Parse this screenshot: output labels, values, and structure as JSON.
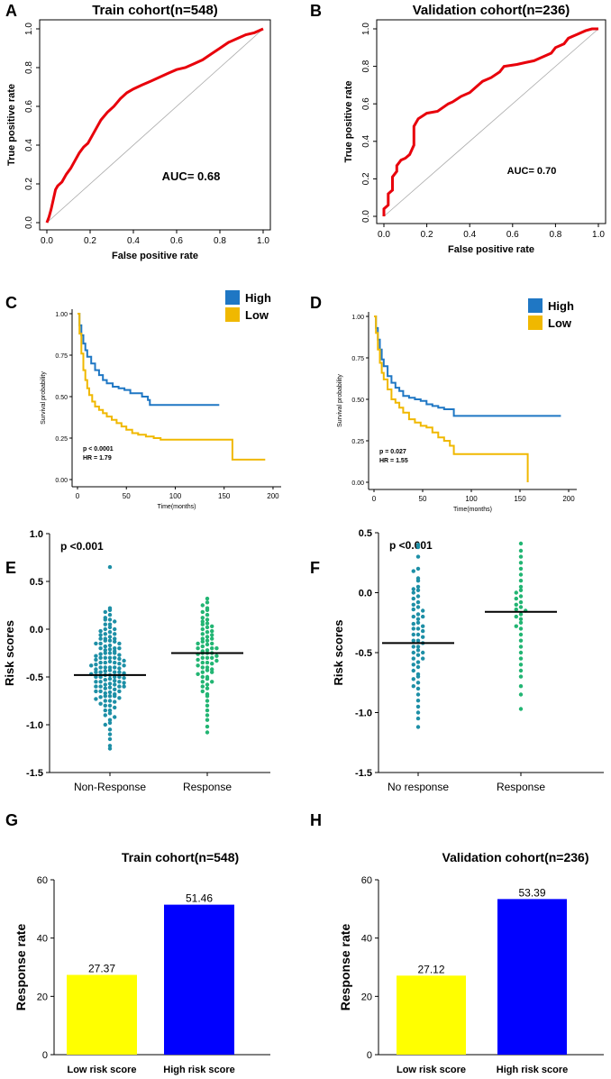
{
  "figure": {
    "panel_letters": [
      "A",
      "B",
      "C",
      "D",
      "E",
      "F",
      "G",
      "H"
    ]
  },
  "chart_data": [
    {
      "panel": "A",
      "type": "line",
      "title": "Train cohort(n=548)",
      "xlabel": "False positive rate",
      "ylabel": "True positive rate",
      "xticks": [
        "0.0",
        "0.2",
        "0.4",
        "0.6",
        "0.8",
        "1.0"
      ],
      "yticks": [
        "0.0",
        "0.2",
        "0.4",
        "0.6",
        "0.8",
        "1.0"
      ],
      "xlim": [
        0,
        1
      ],
      "ylim": [
        0,
        1
      ],
      "annotation": "AUC= 0.68",
      "series": [
        {
          "name": "ROC",
          "color": "#e8000b",
          "x": [
            0,
            0.01,
            0.02,
            0.03,
            0.04,
            0.05,
            0.07,
            0.09,
            0.11,
            0.13,
            0.15,
            0.17,
            0.19,
            0.21,
            0.23,
            0.25,
            0.28,
            0.31,
            0.34,
            0.37,
            0.4,
            0.44,
            0.48,
            0.52,
            0.56,
            0.6,
            0.64,
            0.68,
            0.72,
            0.76,
            0.8,
            0.84,
            0.88,
            0.92,
            0.96,
            1.0
          ],
          "y": [
            0,
            0.03,
            0.07,
            0.12,
            0.17,
            0.19,
            0.21,
            0.25,
            0.28,
            0.32,
            0.36,
            0.39,
            0.41,
            0.45,
            0.49,
            0.53,
            0.57,
            0.6,
            0.64,
            0.67,
            0.69,
            0.71,
            0.73,
            0.75,
            0.77,
            0.79,
            0.8,
            0.82,
            0.84,
            0.87,
            0.9,
            0.93,
            0.95,
            0.97,
            0.98,
            1.0
          ]
        },
        {
          "name": "reference",
          "color": "#aaaaaa",
          "x": [
            0,
            1
          ],
          "y": [
            0,
            1
          ]
        }
      ]
    },
    {
      "panel": "B",
      "type": "line",
      "title": "Validation cohort(n=236)",
      "xlabel": "False positive rate",
      "ylabel": "True positive rate",
      "xticks": [
        "0.0",
        "0.2",
        "0.4",
        "0.6",
        "0.8",
        "1.0"
      ],
      "yticks": [
        "0.0",
        "0.2",
        "0.4",
        "0.6",
        "0.8",
        "1.0"
      ],
      "xlim": [
        0,
        1
      ],
      "ylim": [
        0,
        1
      ],
      "annotation": "AUC= 0.70",
      "series": [
        {
          "name": "ROC",
          "color": "#e8000b",
          "x": [
            0,
            0.0,
            0.02,
            0.02,
            0.04,
            0.04,
            0.06,
            0.06,
            0.08,
            0.1,
            0.12,
            0.14,
            0.14,
            0.16,
            0.2,
            0.25,
            0.3,
            0.32,
            0.36,
            0.4,
            0.44,
            0.46,
            0.5,
            0.54,
            0.56,
            0.62,
            0.66,
            0.7,
            0.72,
            0.78,
            0.8,
            0.84,
            0.86,
            0.9,
            0.94,
            0.97,
            1.0
          ],
          "y": [
            0,
            0.04,
            0.06,
            0.12,
            0.14,
            0.21,
            0.24,
            0.27,
            0.3,
            0.31,
            0.33,
            0.38,
            0.48,
            0.52,
            0.55,
            0.56,
            0.6,
            0.61,
            0.64,
            0.66,
            0.7,
            0.72,
            0.74,
            0.77,
            0.8,
            0.81,
            0.82,
            0.83,
            0.84,
            0.87,
            0.9,
            0.92,
            0.95,
            0.97,
            0.99,
            1.0,
            1.0
          ]
        },
        {
          "name": "reference",
          "color": "#aaaaaa",
          "x": [
            0,
            1
          ],
          "y": [
            0,
            1
          ]
        }
      ]
    },
    {
      "panel": "C",
      "type": "line",
      "title": "",
      "xlabel": "Time(months)",
      "ylabel": "Survival probability",
      "xticks": [
        "0",
        "50",
        "100",
        "150",
        "200"
      ],
      "yticks": [
        "0.00",
        "0.25",
        "0.50",
        "0.75",
        "1.00"
      ],
      "xlim": [
        0,
        200
      ],
      "ylim": [
        0,
        1
      ],
      "annotation": [
        "p < 0.0001",
        "HR = 1.79"
      ],
      "legend": [
        "High",
        "Low"
      ],
      "series": [
        {
          "name": "High",
          "color": "#1f77c4",
          "x": [
            0,
            2,
            4,
            6,
            8,
            10,
            14,
            18,
            22,
            26,
            30,
            36,
            42,
            48,
            54,
            60,
            66,
            72,
            74,
            80,
            90,
            100,
            110,
            120,
            130,
            145
          ],
          "y": [
            1.0,
            0.93,
            0.87,
            0.82,
            0.78,
            0.74,
            0.7,
            0.66,
            0.63,
            0.6,
            0.58,
            0.56,
            0.55,
            0.54,
            0.52,
            0.52,
            0.5,
            0.48,
            0.45,
            0.45,
            0.45,
            0.45,
            0.45,
            0.45,
            0.45,
            0.45
          ]
        },
        {
          "name": "Low",
          "color": "#f0b800",
          "x": [
            0,
            2,
            4,
            6,
            8,
            10,
            12,
            15,
            18,
            22,
            26,
            30,
            35,
            40,
            45,
            50,
            56,
            62,
            70,
            78,
            85,
            100,
            120,
            150,
            158,
            158.5,
            170,
            180,
            192
          ],
          "y": [
            1.0,
            0.88,
            0.76,
            0.66,
            0.6,
            0.55,
            0.51,
            0.47,
            0.44,
            0.42,
            0.4,
            0.38,
            0.36,
            0.34,
            0.32,
            0.3,
            0.28,
            0.27,
            0.26,
            0.25,
            0.24,
            0.24,
            0.24,
            0.24,
            0.24,
            0.12,
            0.12,
            0.12,
            0.12
          ]
        }
      ]
    },
    {
      "panel": "D",
      "type": "line",
      "title": "",
      "xlabel": "Time(months)",
      "ylabel": "Survival probability",
      "xticks": [
        "0",
        "50",
        "100",
        "150",
        "200"
      ],
      "yticks": [
        "0.00",
        "0.25",
        "0.50",
        "0.75",
        "1.00"
      ],
      "xlim": [
        0,
        200
      ],
      "ylim": [
        0,
        1
      ],
      "annotation": [
        "p = 0.027",
        "HR = 1.55"
      ],
      "legend": [
        "High",
        "Low"
      ],
      "series": [
        {
          "name": "High",
          "color": "#1f77c4",
          "x": [
            0,
            2,
            4,
            6,
            8,
            10,
            14,
            18,
            22,
            26,
            30,
            36,
            42,
            48,
            54,
            60,
            66,
            72,
            78,
            80,
            82,
            100,
            120,
            140,
            160,
            180,
            192
          ],
          "y": [
            1.0,
            0.93,
            0.86,
            0.8,
            0.74,
            0.7,
            0.64,
            0.6,
            0.57,
            0.55,
            0.52,
            0.51,
            0.5,
            0.49,
            0.47,
            0.46,
            0.45,
            0.44,
            0.44,
            0.44,
            0.4,
            0.4,
            0.4,
            0.4,
            0.4,
            0.4,
            0.4
          ]
        },
        {
          "name": "Low",
          "color": "#f0b800",
          "x": [
            0,
            2,
            4,
            6,
            8,
            10,
            14,
            18,
            22,
            26,
            30,
            36,
            42,
            48,
            54,
            60,
            66,
            72,
            78,
            82,
            90,
            110,
            130,
            150,
            158,
            158
          ],
          "y": [
            1.0,
            0.9,
            0.8,
            0.72,
            0.66,
            0.62,
            0.56,
            0.5,
            0.48,
            0.45,
            0.42,
            0.38,
            0.36,
            0.34,
            0.33,
            0.3,
            0.27,
            0.25,
            0.22,
            0.17,
            0.17,
            0.17,
            0.17,
            0.17,
            0.17,
            0.0
          ]
        }
      ]
    },
    {
      "panel": "E",
      "type": "scatter",
      "title": "",
      "annotation": "p <0.001",
      "ylabel": "Risk scores",
      "categories": [
        "Non-Response",
        "Response"
      ],
      "yticks": [
        "-1.5",
        "-1.0",
        "-0.5",
        "0.0",
        "0.5",
        "1.0"
      ],
      "ylim": [
        -1.5,
        1.0
      ],
      "means": [
        -0.48,
        -0.25
      ],
      "colors": [
        "#1d8fa6",
        "#22b573"
      ],
      "series": [
        {
          "name": "Non-Response",
          "values": [
            0.65,
            0.22,
            0.2,
            0.18,
            0.15,
            0.12,
            0.1,
            0.1,
            0.08,
            0.05,
            0.05,
            0.02,
            0.0,
            0.0,
            -0.02,
            -0.03,
            -0.05,
            -0.05,
            -0.06,
            -0.08,
            -0.1,
            -0.1,
            -0.1,
            -0.12,
            -0.12,
            -0.13,
            -0.15,
            -0.15,
            -0.15,
            -0.17,
            -0.18,
            -0.2,
            -0.2,
            -0.2,
            -0.21,
            -0.22,
            -0.23,
            -0.25,
            -0.25,
            -0.25,
            -0.26,
            -0.27,
            -0.28,
            -0.3,
            -0.3,
            -0.3,
            -0.3,
            -0.31,
            -0.32,
            -0.33,
            -0.34,
            -0.35,
            -0.35,
            -0.35,
            -0.36,
            -0.37,
            -0.38,
            -0.38,
            -0.4,
            -0.4,
            -0.4,
            -0.4,
            -0.41,
            -0.42,
            -0.43,
            -0.44,
            -0.45,
            -0.45,
            -0.45,
            -0.45,
            -0.46,
            -0.47,
            -0.48,
            -0.48,
            -0.5,
            -0.5,
            -0.5,
            -0.5,
            -0.51,
            -0.52,
            -0.53,
            -0.54,
            -0.55,
            -0.55,
            -0.55,
            -0.56,
            -0.57,
            -0.58,
            -0.58,
            -0.6,
            -0.6,
            -0.6,
            -0.6,
            -0.61,
            -0.62,
            -0.63,
            -0.65,
            -0.65,
            -0.65,
            -0.66,
            -0.67,
            -0.68,
            -0.7,
            -0.7,
            -0.7,
            -0.71,
            -0.72,
            -0.73,
            -0.75,
            -0.75,
            -0.76,
            -0.78,
            -0.8,
            -0.8,
            -0.82,
            -0.85,
            -0.85,
            -0.88,
            -0.9,
            -0.92,
            -0.95,
            -0.98,
            -1.0,
            -1.05,
            -1.1,
            -1.15,
            -1.22,
            -1.25
          ]
        },
        {
          "name": "Response",
          "values": [
            0.32,
            0.28,
            0.25,
            0.22,
            0.2,
            0.18,
            0.15,
            0.12,
            0.1,
            0.08,
            0.06,
            0.05,
            0.03,
            0.02,
            0.0,
            -0.02,
            -0.03,
            -0.05,
            -0.06,
            -0.08,
            -0.1,
            -0.1,
            -0.12,
            -0.13,
            -0.15,
            -0.15,
            -0.16,
            -0.18,
            -0.2,
            -0.2,
            -0.2,
            -0.22,
            -0.23,
            -0.25,
            -0.25,
            -0.25,
            -0.26,
            -0.28,
            -0.3,
            -0.3,
            -0.3,
            -0.32,
            -0.33,
            -0.35,
            -0.35,
            -0.36,
            -0.38,
            -0.4,
            -0.4,
            -0.42,
            -0.43,
            -0.45,
            -0.45,
            -0.47,
            -0.5,
            -0.5,
            -0.52,
            -0.55,
            -0.55,
            -0.58,
            -0.6,
            -0.62,
            -0.65,
            -0.68,
            -0.7,
            -0.75,
            -0.8,
            -0.85,
            -0.9,
            -0.95,
            -1.02,
            -1.08
          ]
        }
      ]
    },
    {
      "panel": "F",
      "type": "scatter",
      "title": "",
      "annotation": "p <0.001",
      "ylabel": "Risk scores",
      "categories": [
        "No response",
        "Response"
      ],
      "yticks": [
        "-1.5",
        "-1.0",
        "-0.5",
        "0.0",
        "0.5"
      ],
      "ylim": [
        -1.5,
        0.5
      ],
      "means": [
        -0.42,
        -0.16
      ],
      "colors": [
        "#1d8fa6",
        "#22b573"
      ],
      "series": [
        {
          "name": "No response",
          "values": [
            0.4,
            0.38,
            0.3,
            0.2,
            0.18,
            0.12,
            0.1,
            0.05,
            0.03,
            0.02,
            0.0,
            -0.03,
            -0.05,
            -0.08,
            -0.1,
            -0.12,
            -0.14,
            -0.15,
            -0.18,
            -0.2,
            -0.2,
            -0.22,
            -0.25,
            -0.26,
            -0.28,
            -0.3,
            -0.3,
            -0.32,
            -0.35,
            -0.35,
            -0.37,
            -0.4,
            -0.4,
            -0.42,
            -0.45,
            -0.45,
            -0.48,
            -0.5,
            -0.5,
            -0.52,
            -0.55,
            -0.55,
            -0.58,
            -0.6,
            -0.62,
            -0.65,
            -0.68,
            -0.7,
            -0.72,
            -0.75,
            -0.78,
            -0.8,
            -0.85,
            -0.9,
            -0.95,
            -1.0,
            -1.05,
            -1.12
          ]
        },
        {
          "name": "Response",
          "values": [
            0.41,
            0.35,
            0.3,
            0.25,
            0.2,
            0.15,
            0.1,
            0.05,
            0.02,
            0.0,
            -0.03,
            -0.05,
            -0.08,
            -0.1,
            -0.12,
            -0.14,
            -0.15,
            -0.18,
            -0.2,
            -0.22,
            -0.25,
            -0.28,
            -0.3,
            -0.35,
            -0.4,
            -0.45,
            -0.5,
            -0.55,
            -0.6,
            -0.65,
            -0.7,
            -0.78,
            -0.85,
            -0.97
          ]
        }
      ]
    },
    {
      "panel": "G",
      "type": "bar",
      "title": "Train cohort(n=548)",
      "xlabel": "",
      "ylabel": "Response rate",
      "categories": [
        "Low risk score",
        "High risk score"
      ],
      "values": [
        27.37,
        51.46
      ],
      "labels": [
        "27.37",
        "51.46"
      ],
      "colors": [
        "#ffff00",
        "#0000ff"
      ],
      "yticks": [
        "0",
        "20",
        "40",
        "60"
      ],
      "ylim": [
        0,
        60
      ]
    },
    {
      "panel": "H",
      "type": "bar",
      "title": "Validation cohort(n=236)",
      "xlabel": "",
      "ylabel": "Response rate",
      "categories": [
        "Low risk score",
        "High risk score"
      ],
      "values": [
        27.12,
        53.39
      ],
      "labels": [
        "27.12",
        "53.39"
      ],
      "colors": [
        "#ffff00",
        "#0000ff"
      ],
      "yticks": [
        "0",
        "20",
        "40",
        "60"
      ],
      "ylim": [
        0,
        60
      ]
    }
  ]
}
